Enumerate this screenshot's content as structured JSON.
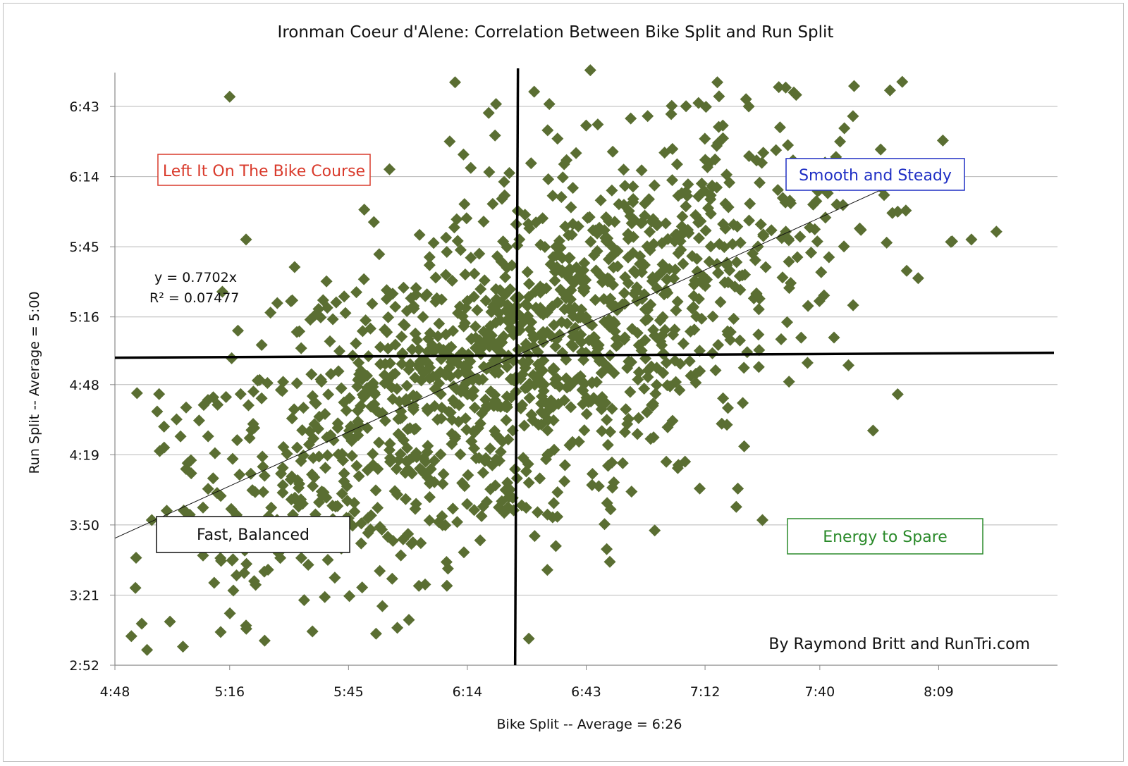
{
  "chart_data": {
    "type": "scatter",
    "title": "Ironman Coeur d'Alene: Correlation Between Bike Split and Run Split",
    "xlabel": "Bike Split -- Average = 6:26",
    "ylabel": "Run Split -- Average = 5:00",
    "x_ticks": [
      "4:48",
      "5:16",
      "5:45",
      "6:14",
      "6:43",
      "7:12",
      "7:40",
      "8:09"
    ],
    "y_ticks": [
      "2:52",
      "3:21",
      "3:50",
      "4:19",
      "4:48",
      "5:16",
      "5:45",
      "6:14",
      "6:43"
    ],
    "xlim": [
      "4:48",
      "8:38"
    ],
    "ylim": [
      "2:52",
      "6:57"
    ],
    "grid": "horizontal",
    "marker": "diamond",
    "marker_color": "#5a6e32",
    "trendline": {
      "equation": "y = 0.7702x",
      "r_squared": "R² = 0.07477",
      "slope": 0.7702
    },
    "averages": {
      "bike": "6:26",
      "run": "5:00"
    },
    "annotations": {
      "top_left": {
        "text": "Left It On The Bike Course",
        "color": "#d93a2b"
      },
      "top_right": {
        "text": "Smooth and Steady",
        "color": "#1f2fc4"
      },
      "bottom_left": {
        "text": "Fast, Balanced",
        "color": "#111111"
      },
      "bottom_right": {
        "text": "Energy to Spare",
        "color": "#2a8a2a"
      }
    },
    "credit": "By Raymond Britt and RunTri.com",
    "points_approx_count": 1400,
    "sample_points": [
      [
        "5:16",
        "6:47"
      ],
      [
        "6:11",
        "6:53"
      ],
      [
        "6:44",
        "6:58"
      ],
      [
        "7:15",
        "6:53"
      ],
      [
        "7:30",
        "6:51"
      ],
      [
        "5:20",
        "5:48"
      ],
      [
        "5:55",
        "6:17"
      ],
      [
        "7:46",
        "6:34"
      ],
      [
        "8:01",
        "6:00"
      ],
      [
        "8:12",
        "5:47"
      ],
      [
        "8:17",
        "5:48"
      ],
      [
        "8:04",
        "5:32"
      ],
      [
        "5:33",
        "5:10"
      ],
      [
        "5:42",
        "5:22"
      ],
      [
        "7:37",
        "4:57"
      ],
      [
        "7:47",
        "4:56"
      ],
      [
        "7:59",
        "4:44"
      ],
      [
        "7:53",
        "4:29"
      ],
      [
        "4:53",
        "3:24"
      ],
      [
        "4:52",
        "3:04"
      ],
      [
        "5:00",
        "4:22"
      ],
      [
        "4:57",
        "3:52"
      ],
      [
        "6:29",
        "3:03"
      ],
      [
        "6:23",
        "3:55"
      ],
      [
        "6:48",
        "3:40"
      ],
      [
        "7:26",
        "3:52"
      ],
      [
        "7:20",
        "4:05"
      ],
      [
        "6:34",
        "6:44"
      ],
      [
        "6:58",
        "6:39"
      ],
      [
        "7:22",
        "6:46"
      ],
      [
        "6:21",
        "6:44"
      ],
      [
        "5:33",
        "4:07"
      ],
      [
        "6:08",
        "4:07"
      ],
      [
        "6:24",
        "5:00"
      ],
      [
        "6:40",
        "5:30"
      ],
      [
        "6:00",
        "4:30"
      ],
      [
        "7:00",
        "5:55"
      ],
      [
        "5:50",
        "4:45"
      ],
      [
        "7:10",
        "5:40"
      ],
      [
        "6:50",
        "5:10"
      ]
    ]
  }
}
